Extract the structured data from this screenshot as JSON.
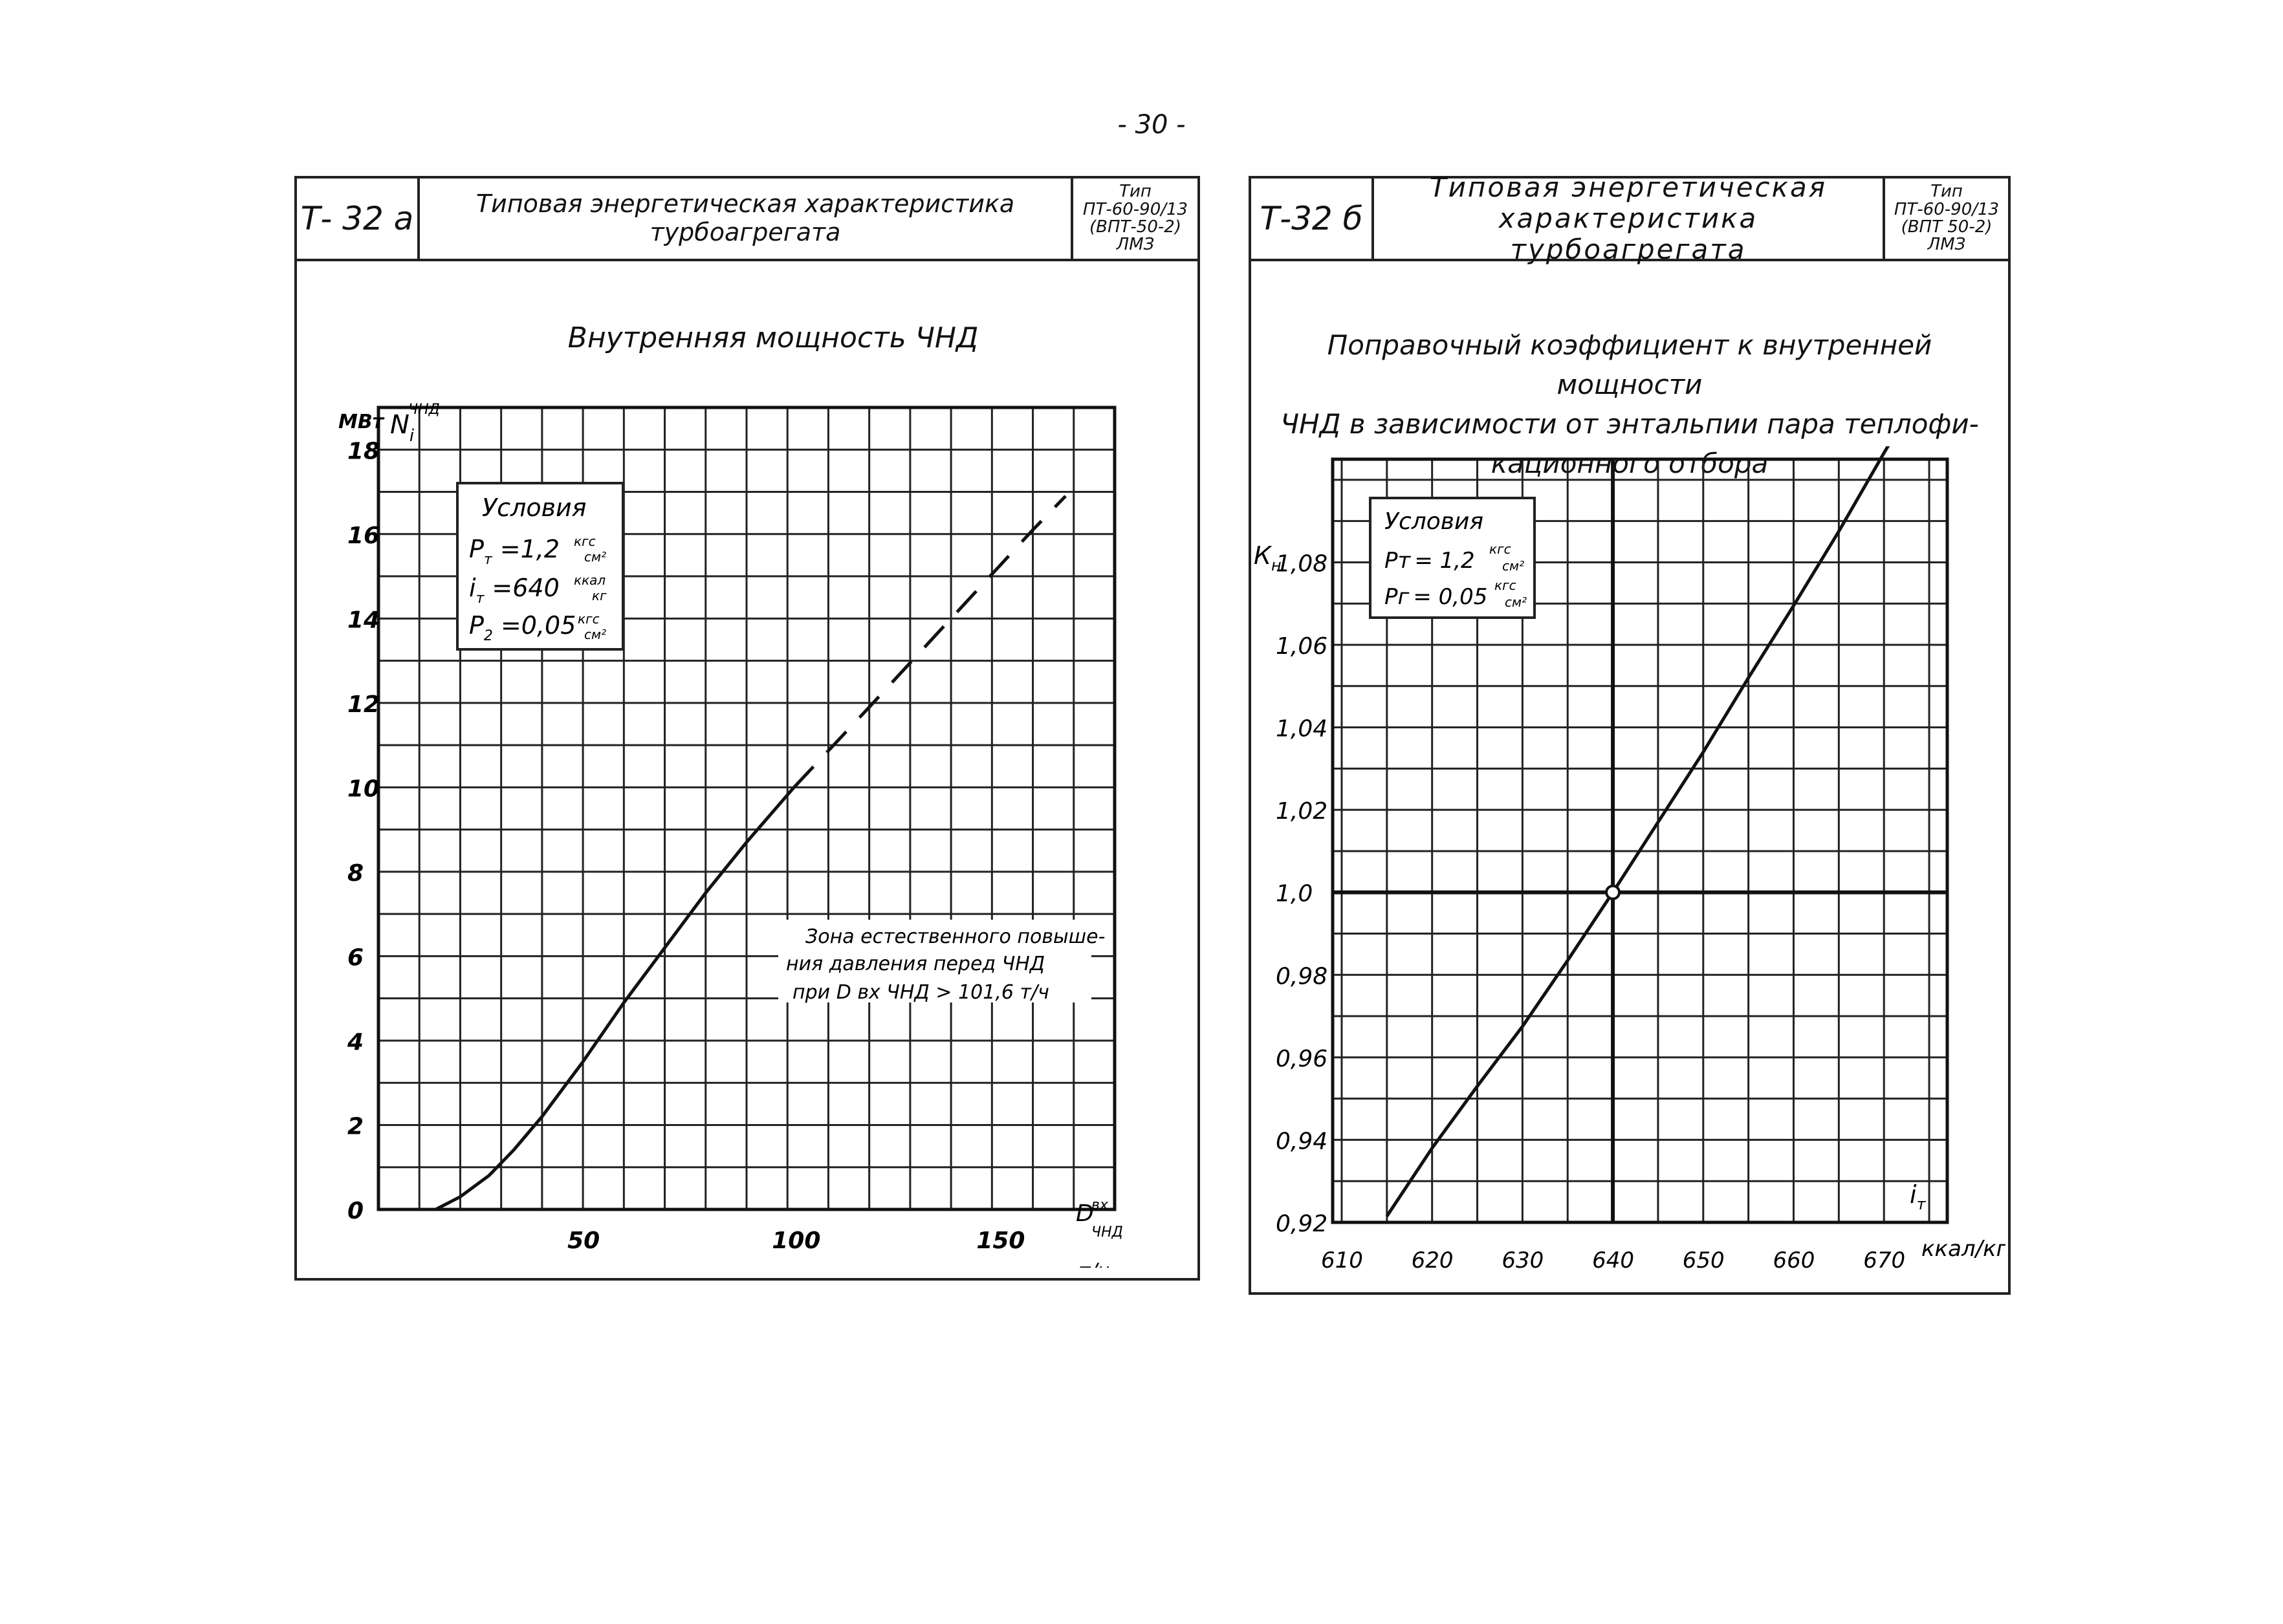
{
  "page_number": "- 30 -",
  "left_sheet": {
    "code": "Т- 32 а",
    "title": "Типовая энергетическая характеристика турбоагрегата",
    "type_lines": [
      "Тип",
      "ПТ-60-90/13",
      "(ВПТ-50-2)",
      "ЛМЗ"
    ],
    "chart_title": "Внутренняя мощность ЧНД",
    "y_unit": "МВт",
    "y_symbol": "N",
    "y_symbol_sub": "i",
    "y_symbol_sup": "ЧНД",
    "x_symbol": "D",
    "x_symbol_sup": "вх",
    "x_symbol_sub": "ЧНД",
    "x_unit": "т/ч",
    "conditions_title": "Условия",
    "conditions": [
      {
        "sym": "Р",
        "sub": "т",
        "value": "=1,2",
        "unit_num": "кгс",
        "unit_den": "см²"
      },
      {
        "sym": "i",
        "sub": "т",
        "value": "=640",
        "unit_num": "ккал",
        "unit_den": "кг"
      },
      {
        "sym": "Р",
        "sub": "2",
        "value": "=0,05",
        "unit_num": "кгс",
        "unit_den": "см²"
      }
    ],
    "zone_note": [
      "Зона естественного повыше-",
      "ния давления перед ЧНД",
      "при D вх ЧНД > 101,6 т/ч"
    ],
    "colors": {
      "ink": "#111111",
      "grid": "#222222",
      "paper": "#ffffff"
    }
  },
  "right_sheet": {
    "code": "Т-32 б",
    "title_lines": [
      "Типовая энергетическая",
      "характеристика турбоагрегата"
    ],
    "type_lines": [
      "Тип",
      "ПТ-60-90/13",
      "(ВПТ 50-2)",
      "ЛМЗ"
    ],
    "chart_title_lines": [
      "Поправочный коэффициент к внутренней мощности",
      "ЧНД в зависимости от энтальпии пара теплофи-",
      "кационного отбора"
    ],
    "y_symbol": "К",
    "y_symbol_sub": "н",
    "x_symbol": "i",
    "x_symbol_sub": "т",
    "x_unit": "ккал/кг",
    "conditions_title": "Условия",
    "conditions": [
      {
        "sym": "Рт",
        "value": "= 1,2",
        "unit_num": "кгс",
        "unit_den": "см²"
      },
      {
        "sym": "Рг",
        "value": "= 0,05",
        "unit_num": "кгс",
        "unit_den": "см²"
      }
    ]
  },
  "chart_data": [
    {
      "type": "line",
      "title": "Внутренняя мощность ЧНД",
      "xlabel": "т/ч",
      "ylabel": "МВт",
      "xlim": [
        0,
        180
      ],
      "ylim": [
        0,
        19
      ],
      "x_ticks": [
        50,
        100,
        150
      ],
      "y_ticks": [
        0,
        2,
        4,
        6,
        8,
        10,
        12,
        14,
        16,
        18
      ],
      "grid": true,
      "series": [
        {
          "style": "solid",
          "x": [
            14,
            20,
            27,
            33,
            40,
            50,
            60,
            70,
            80,
            90,
            101.6
          ],
          "y": [
            0,
            0.3,
            0.8,
            1.4,
            2.2,
            3.5,
            4.9,
            6.2,
            7.5,
            8.7,
            10.0
          ]
        },
        {
          "style": "dashed",
          "x": [
            101.6,
            120,
            140,
            160,
            168
          ],
          "y": [
            10.0,
            11.9,
            14.0,
            16.1,
            16.9
          ]
        }
      ]
    },
    {
      "type": "line",
      "title": "Поправочный коэффициент к внутренней мощности ЧНД в зависимости от энтальпии пара теплофикационного отбора",
      "xlabel": "ккал/кг",
      "ylabel": "Кн",
      "xlim": [
        609,
        677
      ],
      "ylim": [
        0.92,
        1.105
      ],
      "x_ticks": [
        610,
        620,
        630,
        640,
        650,
        660,
        670
      ],
      "y_ticks": [
        0.92,
        0.94,
        0.96,
        0.98,
        1.0,
        1.02,
        1.04,
        1.06,
        1.08
      ],
      "y_tick_labels": [
        "0,92",
        "0,94",
        "0,96",
        "0,98",
        "1,0",
        "1,02",
        "1,04",
        "1,06",
        "1,08"
      ],
      "grid": true,
      "series": [
        {
          "style": "solid",
          "x": [
            615,
            620,
            625,
            630,
            635,
            640,
            645,
            650,
            655,
            660,
            665,
            670,
            674
          ],
          "y": [
            0.9215,
            0.938,
            0.953,
            0.9675,
            0.9835,
            1.0,
            1.017,
            1.034,
            1.052,
            1.0695,
            1.0875,
            1.1065,
            1.1215
          ]
        }
      ],
      "marked_point": {
        "x": 640,
        "y": 1.0
      }
    }
  ]
}
